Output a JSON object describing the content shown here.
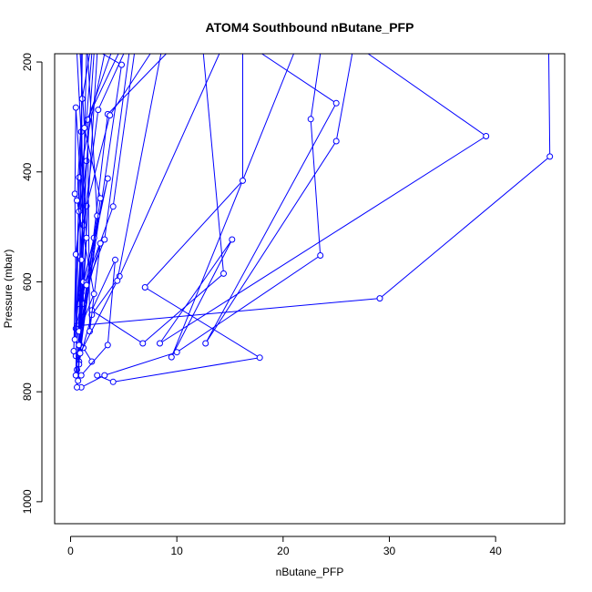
{
  "chart_data": {
    "type": "line",
    "title": "ATOM4 Southbound nButane_PFP",
    "xlabel": "nButane_PFP",
    "ylabel": "Pressure (mbar)",
    "xlim": [
      -1.5,
      46.5
    ],
    "ylim": [
      1040,
      185
    ],
    "y_inverted": true,
    "x_ticks": [
      0,
      10,
      20,
      30,
      40
    ],
    "y_ticks": [
      200,
      400,
      600,
      800,
      1000
    ],
    "grid": false,
    "legend": "none",
    "line_color": "#0000ff",
    "marker": "open-circle",
    "series": [
      {
        "points": [
          [
            45.0,
            185
          ],
          [
            45.1,
            372
          ],
          [
            29.1,
            630
          ],
          [
            0.6,
            680
          ],
          [
            1.2,
            720
          ],
          [
            2.0,
            745
          ]
        ]
      },
      {
        "points": [
          [
            28.0,
            185
          ],
          [
            39.1,
            335
          ],
          [
            8.4,
            712
          ],
          [
            15.2,
            523
          ],
          [
            9.5,
            737
          ],
          [
            21.0,
            185
          ]
        ]
      },
      {
        "points": [
          [
            26.5,
            185
          ],
          [
            25.0,
            344
          ],
          [
            12.7,
            712
          ],
          [
            25.0,
            275
          ],
          [
            18.0,
            185
          ]
        ]
      },
      {
        "points": [
          [
            23.5,
            185
          ],
          [
            22.6,
            304
          ],
          [
            23.5,
            552
          ],
          [
            10.0,
            728
          ],
          [
            3.2,
            770
          ],
          [
            1.0,
            792
          ]
        ]
      },
      {
        "points": [
          [
            16.2,
            185
          ],
          [
            16.2,
            416
          ],
          [
            7.0,
            610
          ],
          [
            17.8,
            738
          ],
          [
            4.0,
            782
          ],
          [
            2.5,
            770
          ]
        ]
      },
      {
        "points": [
          [
            12.5,
            185
          ],
          [
            14.4,
            585
          ],
          [
            6.8,
            712
          ],
          [
            2.0,
            652
          ],
          [
            4.2,
            560
          ],
          [
            3.5,
            715
          ],
          [
            1.0,
            770
          ]
        ]
      },
      {
        "points": [
          [
            14.0,
            185
          ],
          [
            4.6,
            590
          ],
          [
            2.0,
            660
          ],
          [
            0.8,
            745
          ],
          [
            3.5,
            295
          ],
          [
            9.0,
            185
          ]
        ]
      },
      {
        "points": [
          [
            7.5,
            185
          ],
          [
            3.7,
            297
          ],
          [
            1.5,
            462
          ],
          [
            0.5,
            685
          ],
          [
            3.5,
            412
          ],
          [
            1.0,
            620
          ],
          [
            0.5,
            735
          ]
        ]
      },
      {
        "points": [
          [
            6.0,
            185
          ],
          [
            4.0,
            463
          ],
          [
            0.7,
            640
          ],
          [
            2.2,
            520
          ],
          [
            0.6,
            760
          ],
          [
            4.8,
            205
          ],
          [
            3.0,
            185
          ]
        ]
      },
      {
        "points": [
          [
            5.0,
            185
          ],
          [
            2.6,
            287
          ],
          [
            1.2,
            497
          ],
          [
            0.5,
            283
          ],
          [
            0.4,
            440
          ],
          [
            0.6,
            792
          ],
          [
            2.5,
            185
          ]
        ]
      },
      {
        "points": [
          [
            4.5,
            185
          ],
          [
            1.0,
            327
          ],
          [
            0.3,
            726
          ],
          [
            0.5,
            550
          ],
          [
            1.5,
            380
          ],
          [
            0.8,
            750
          ],
          [
            1.5,
            185
          ]
        ]
      },
      {
        "points": [
          [
            3.8,
            185
          ],
          [
            1.6,
            305
          ],
          [
            1.8,
            690
          ],
          [
            2.8,
            530
          ],
          [
            1.2,
            640
          ],
          [
            1.0,
            185
          ]
        ]
      },
      {
        "points": [
          [
            3.2,
            185
          ],
          [
            0.8,
            410
          ],
          [
            0.5,
            770
          ],
          [
            1.2,
            600
          ],
          [
            0.8,
            472
          ],
          [
            2.0,
            185
          ]
        ]
      },
      {
        "points": [
          [
            2.2,
            185
          ],
          [
            0.4,
            705
          ],
          [
            1.0,
            560
          ],
          [
            0.7,
            780
          ],
          [
            1.5,
            520
          ],
          [
            0.6,
            185
          ]
        ]
      },
      {
        "points": [
          [
            1.8,
            185
          ],
          [
            1.1,
            267
          ],
          [
            0.6,
            452
          ],
          [
            2.2,
            622
          ],
          [
            0.8,
            690
          ],
          [
            1.1,
            185
          ]
        ]
      },
      {
        "points": [
          [
            5.5,
            185
          ],
          [
            3.2,
            523
          ],
          [
            1.5,
            606
          ],
          [
            0.8,
            715
          ],
          [
            2.5,
            480
          ],
          [
            1.6,
            185
          ]
        ]
      },
      {
        "points": [
          [
            8.5,
            185
          ],
          [
            4.4,
            598
          ],
          [
            0.9,
            730
          ],
          [
            2.8,
            448
          ],
          [
            1.3,
            320
          ],
          [
            0.9,
            185
          ]
        ]
      }
    ]
  }
}
